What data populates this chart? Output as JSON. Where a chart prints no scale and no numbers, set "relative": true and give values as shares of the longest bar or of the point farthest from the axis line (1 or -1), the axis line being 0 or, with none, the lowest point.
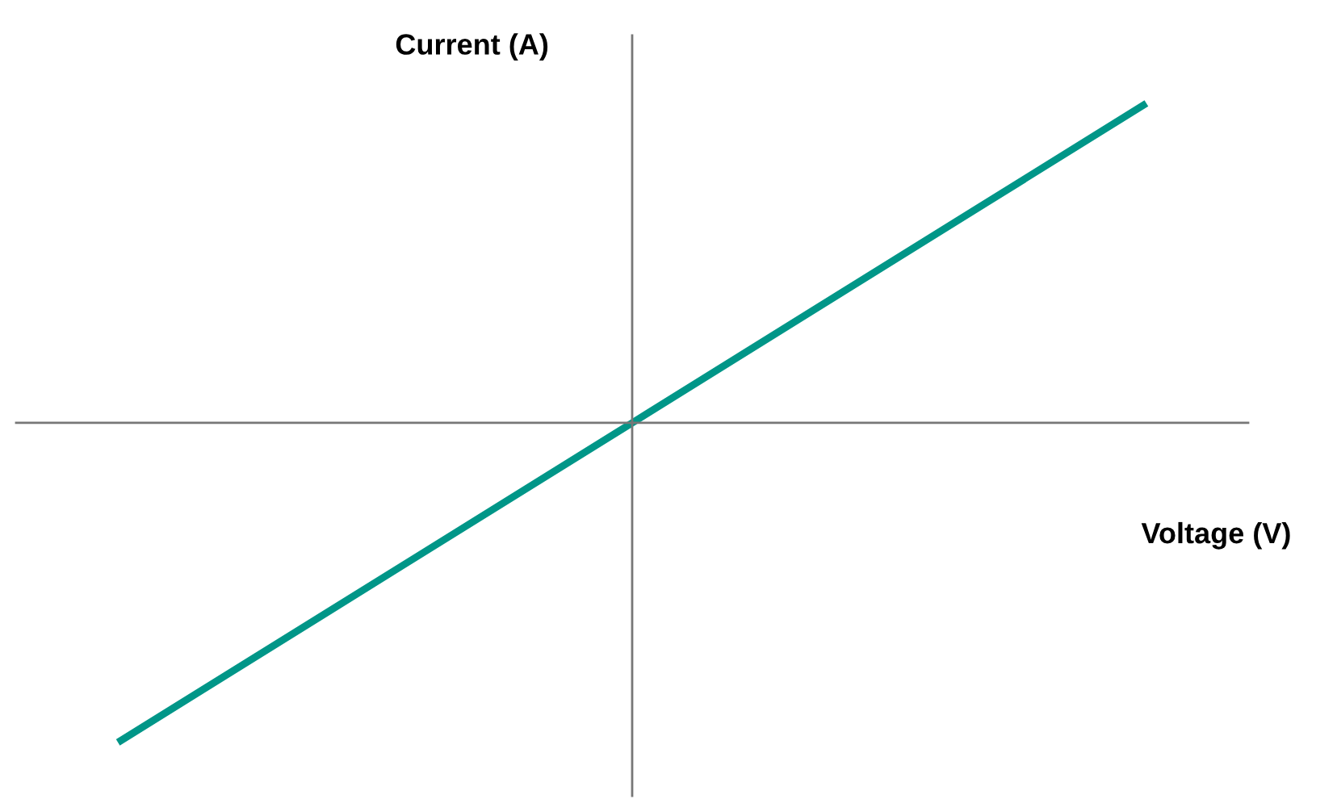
{
  "chart_data": {
    "type": "line",
    "relative": true,
    "xlabel": "Voltage (V)",
    "ylabel": "Current (A)",
    "categories": [
      null,
      null,
      null
    ],
    "series": [
      {
        "color": "#009688",
        "values": [
          -1,
          0,
          1
        ]
      }
    ],
    "marker": "none",
    "line_style": "solid"
  }
}
